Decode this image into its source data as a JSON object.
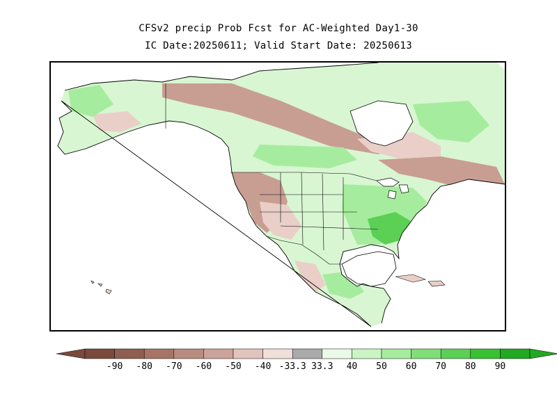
{
  "title": {
    "line1": "CFSv2 precip Prob Fcst for AC-Weighted Day1-30",
    "line2": "IC Date:20250611; Valid Start Date: 20250613"
  },
  "colorbar": {
    "labels": [
      "-90",
      "-80",
      "-70",
      "-60",
      "-50",
      "-40",
      "-33.3",
      "33.3",
      "40",
      "50",
      "60",
      "70",
      "80",
      "90"
    ],
    "colors": [
      "#7a4a3c",
      "#8f5e50",
      "#a77466",
      "#b98c80",
      "#cca39a",
      "#e0c4bd",
      "#f1e0da",
      "#aaaaaa",
      "#e9fbe6",
      "#c9f5c3",
      "#a6ec9e",
      "#80de78",
      "#5ccf55",
      "#38c131",
      "#22a823"
    ],
    "end_left_color": "#7a4a3c",
    "end_right_color": "#22a823"
  },
  "map": {
    "land_colors": {
      "below_light": "#e9cfc7",
      "below_mid": "#c99e92",
      "below_dark": "#a9786b",
      "above_light": "#d8f6d2",
      "above_mid": "#a6ec9e",
      "above_dark": "#5ccf55",
      "neutral": "#ffffff"
    }
  }
}
